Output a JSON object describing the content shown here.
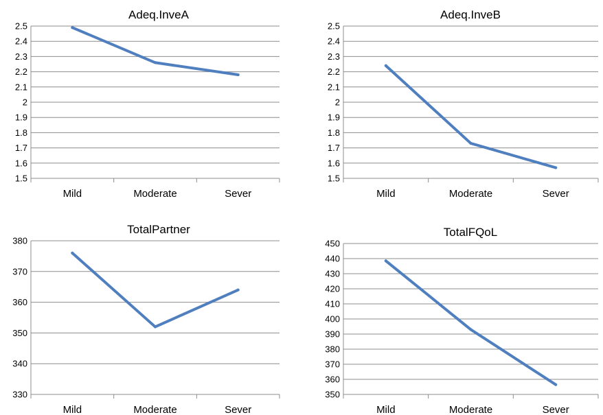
{
  "colors": {
    "series": "#4f7fbf",
    "grid": "#8c8c8c"
  },
  "chart_data": [
    {
      "type": "line",
      "title": "Adeq.InveA",
      "categories": [
        "Mild",
        "Moderate",
        "Sever"
      ],
      "values": [
        2.49,
        2.26,
        2.18
      ],
      "ylim": [
        1.5,
        2.5
      ],
      "yticks": [
        "1.5",
        "1.6",
        "1.7",
        "1.8",
        "1.9",
        "2",
        "2.1",
        "2.2",
        "2.3",
        "2.4",
        "2.5"
      ],
      "grid": true
    },
    {
      "type": "line",
      "title": "Adeq.InveB",
      "categories": [
        "Mild",
        "Moderate",
        "Sever"
      ],
      "values": [
        2.24,
        1.73,
        1.57
      ],
      "ylim": [
        1.5,
        2.5
      ],
      "yticks": [
        "1.5",
        "1.6",
        "1.7",
        "1.8",
        "1.9",
        "2",
        "2.1",
        "2.2",
        "2.3",
        "2.4",
        "2.5"
      ],
      "grid": true
    },
    {
      "type": "line",
      "title": "TotalPartner",
      "categories": [
        "Mild",
        "Moderate",
        "Sever"
      ],
      "values": [
        376,
        352,
        364
      ],
      "ylim": [
        330,
        380
      ],
      "yticks": [
        "330",
        "340",
        "350",
        "360",
        "370",
        "380"
      ],
      "grid": true
    },
    {
      "type": "line",
      "title": "TotalFQoL",
      "categories": [
        "Mild",
        "Moderate",
        "Sever"
      ],
      "values": [
        438.5,
        393,
        356.5
      ],
      "ylim": [
        350,
        450
      ],
      "yticks": [
        "350",
        "360",
        "370",
        "380",
        "390",
        "400",
        "410",
        "420",
        "430",
        "440",
        "450"
      ],
      "grid": true
    }
  ]
}
